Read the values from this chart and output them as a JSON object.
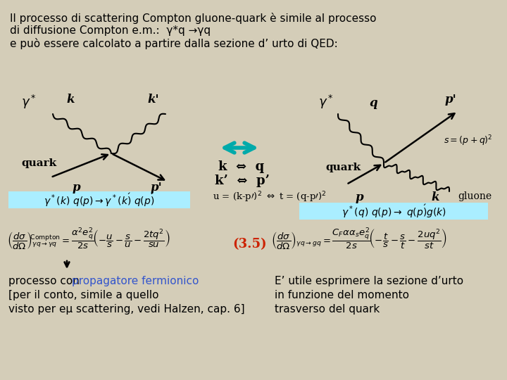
{
  "bg_color": "#d4cdb8",
  "title_lines": [
    "Il processo di scattering Compton gluone-quark è simile al processo",
    "di diffusione Compton e.m.:  γ*q →γq",
    "e può essere calcolato a partire dalla sezione d’ urto di QED:"
  ],
  "eq_label": "(3.5)",
  "bottom_left_text": [
    "processo con propagatore fermionico",
    "[per il conto, simile a quello",
    "visto per eμ scattering, vedi Halzen, cap. 6]"
  ],
  "bottom_right_text": [
    "E’ utile esprimere la sezione d’urto",
    "in funzione del momento",
    "trasverso del quark"
  ],
  "propagatore_color": "#3355cc",
  "eq_color": "#cc2200",
  "arrow_color": "#00aaaa"
}
